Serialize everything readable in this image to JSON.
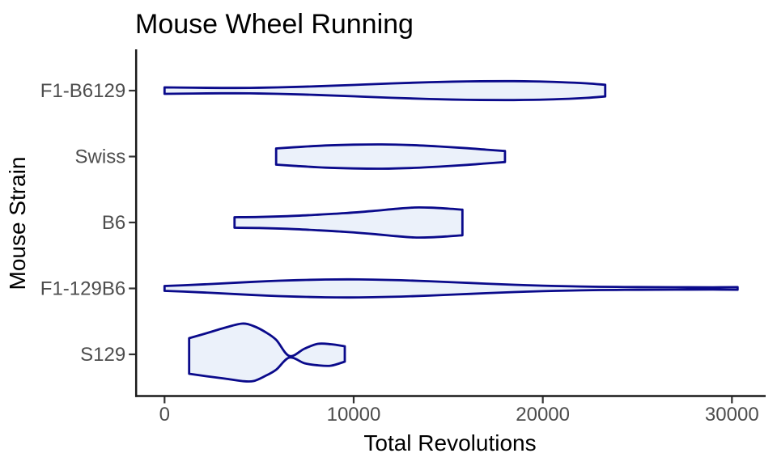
{
  "title": "Mouse Wheel Running",
  "x_axis": {
    "label": "Total Revolutions",
    "ticks": [
      0,
      10000,
      20000,
      30000
    ],
    "tick_labels": [
      "0",
      "10000",
      "20000",
      "30000"
    ]
  },
  "y_axis": {
    "label": "Mouse Strain",
    "categories": [
      "F1-B6129",
      "Swiss",
      "B6",
      "F1-129B6",
      "S129"
    ]
  },
  "colors": {
    "violin_fill": "#EBF1FA",
    "violin_stroke": "#0A0A8B",
    "axis_line": "#1a1a1a",
    "tick_mark": "#333333",
    "tick_label": "#4d4d4d",
    "text": "#000000"
  },
  "chart_data": {
    "type": "violin",
    "orientation": "horizontal",
    "title": "Mouse Wheel Running",
    "xlabel": "Total Revolutions",
    "ylabel": "Mouse Strain",
    "xlim": [
      0,
      31700
    ],
    "x_ticks": [
      0,
      10000,
      20000,
      30000
    ],
    "categories": [
      "F1-B6129",
      "Swiss",
      "B6",
      "F1-129B6",
      "S129"
    ],
    "violins": [
      {
        "strain": "F1-B6129",
        "range": [
          0,
          23300
        ],
        "widest_at": 18000,
        "profile": [
          [
            0,
            4,
            4
          ],
          [
            1500,
            3.6,
            3.6
          ],
          [
            3000,
            3.3,
            3.3
          ],
          [
            4500,
            3.4,
            3.4
          ],
          [
            6000,
            4,
            4
          ],
          [
            8000,
            5.3,
            5.3
          ],
          [
            10000,
            7,
            7
          ],
          [
            12000,
            8.9,
            8.9
          ],
          [
            14000,
            10.4,
            10.4
          ],
          [
            16000,
            11.4,
            11.4
          ],
          [
            18000,
            11.7,
            11.7
          ],
          [
            19500,
            11.4,
            11.4
          ],
          [
            21000,
            10.4,
            10.4
          ],
          [
            22300,
            9,
            9
          ],
          [
            23300,
            7.2,
            7.2
          ]
        ]
      },
      {
        "strain": "Swiss",
        "range": [
          5900,
          18000
        ],
        "widest_at": 11500,
        "profile": [
          [
            5900,
            10,
            10
          ],
          [
            7000,
            11.7,
            11.7
          ],
          [
            8500,
            13.7,
            13.7
          ],
          [
            10000,
            14.7,
            14.7
          ],
          [
            11500,
            15,
            15
          ],
          [
            13000,
            14.2,
            14.2
          ],
          [
            14500,
            12.5,
            12.5
          ],
          [
            16000,
            10.3,
            10.3
          ],
          [
            17000,
            8.5,
            8.5
          ],
          [
            18000,
            6.8,
            6.8
          ]
        ]
      },
      {
        "strain": "B6",
        "range": [
          3700,
          15750
        ],
        "widest_at": 13200,
        "profile": [
          [
            3700,
            6.5,
            6.5
          ],
          [
            5000,
            6.8,
            6.8
          ],
          [
            6500,
            7.8,
            7.8
          ],
          [
            8000,
            9.5,
            9.5
          ],
          [
            9500,
            11.5,
            11.5
          ],
          [
            11000,
            14.2,
            14.2
          ],
          [
            12200,
            16.8,
            16.8
          ],
          [
            13200,
            18.5,
            18.5
          ],
          [
            14100,
            18.3,
            18.3
          ],
          [
            15000,
            17.1,
            17.1
          ],
          [
            15750,
            15.8,
            15.8
          ]
        ]
      },
      {
        "strain": "F1-129B6",
        "range": [
          0,
          30300
        ],
        "widest_at": 9800,
        "profile": [
          [
            0,
            3,
            3
          ],
          [
            1000,
            3.9,
            3.9
          ],
          [
            2500,
            5.5,
            5.5
          ],
          [
            4000,
            7.3,
            7.3
          ],
          [
            5500,
            9,
            9
          ],
          [
            7000,
            10.2,
            10.2
          ],
          [
            8500,
            11,
            11
          ],
          [
            9800,
            11.2,
            11.2
          ],
          [
            11000,
            10.9,
            10.9
          ],
          [
            12500,
            10.1,
            10.1
          ],
          [
            14000,
            8.9,
            8.9
          ],
          [
            15500,
            7.4,
            7.4
          ],
          [
            17000,
            5.9,
            5.9
          ],
          [
            18500,
            4.5,
            4.5
          ],
          [
            20000,
            3.4,
            3.4
          ],
          [
            21500,
            2.6,
            2.6
          ],
          [
            23000,
            2,
            2
          ],
          [
            25000,
            1.7,
            1.7
          ],
          [
            27000,
            1.5,
            1.5
          ],
          [
            29000,
            1.4,
            1.4
          ],
          [
            30300,
            1.6,
            1.6
          ]
        ]
      },
      {
        "strain": "S129",
        "range": [
          1300,
          9530
        ],
        "widest_at": 4100,
        "bimodal_waist_at": 6600,
        "profile": [
          [
            1300,
            20,
            24
          ],
          [
            2200,
            26,
            27
          ],
          [
            3200,
            33,
            30
          ],
          [
            4100,
            38,
            33
          ],
          [
            4700,
            35,
            33
          ],
          [
            5300,
            28,
            27
          ],
          [
            5900,
            18,
            19
          ],
          [
            6600,
            -2,
            4
          ],
          [
            7400,
            7,
            11
          ],
          [
            8100,
            13,
            13.5
          ],
          [
            8800,
            12.5,
            14
          ],
          [
            9530,
            10,
            9
          ]
        ]
      }
    ],
    "profile_units": "half-width in px above (top) and below (bottom) the category centerline",
    "legend": "none",
    "grid": false
  }
}
